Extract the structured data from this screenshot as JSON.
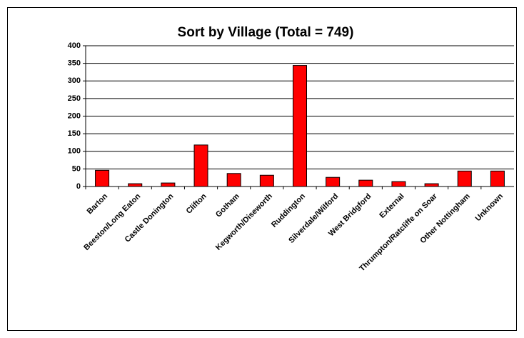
{
  "chart_data": {
    "type": "bar",
    "title": "Sort by Village (Total = 749)",
    "categories": [
      "Barton",
      "Beeston/Long Eaton",
      "Castle Donington",
      "Clifton",
      "Gotham",
      "Kegworth/Diseworth",
      "Ruddington",
      "Silverdale/Wilford",
      "West Bridgford",
      "External",
      "Thrumpton/Ratcliffe on Soar",
      "Other Nottingham",
      "Unknown"
    ],
    "values": [
      46,
      8,
      10,
      118,
      37,
      32,
      344,
      26,
      18,
      14,
      8,
      44,
      44
    ],
    "color": "#ff0000",
    "ylim": [
      0,
      400
    ],
    "yticks": [
      0,
      50,
      100,
      150,
      200,
      250,
      300,
      350,
      400
    ],
    "grid": true
  }
}
